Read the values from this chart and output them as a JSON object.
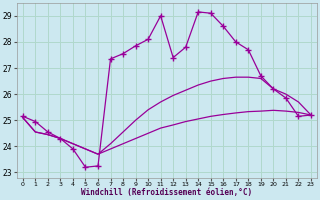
{
  "xlabel": "Windchill (Refroidissement éolien,°C)",
  "xlim": [
    -0.5,
    23.5
  ],
  "ylim": [
    22.8,
    29.5
  ],
  "yticks": [
    23,
    24,
    25,
    26,
    27,
    28,
    29
  ],
  "xticks": [
    0,
    1,
    2,
    3,
    4,
    5,
    6,
    7,
    8,
    9,
    10,
    11,
    12,
    13,
    14,
    15,
    16,
    17,
    18,
    19,
    20,
    21,
    22,
    23
  ],
  "bg_color": "#cce8f0",
  "grid_color": "#b0d8cc",
  "line_color": "#990099",
  "line1_x": [
    0,
    1,
    2,
    3,
    4,
    5,
    6,
    7,
    8,
    9,
    10,
    11,
    12,
    13,
    14,
    15,
    16,
    17,
    18,
    19,
    20,
    21,
    22,
    23
  ],
  "line1_y": [
    25.15,
    24.95,
    24.55,
    24.3,
    23.9,
    23.2,
    23.25,
    27.35,
    27.55,
    27.85,
    28.1,
    29.0,
    27.4,
    27.8,
    29.15,
    29.1,
    28.6,
    28.0,
    27.7,
    26.7,
    26.2,
    25.85,
    25.15,
    25.2
  ],
  "line2_x": [
    0,
    1,
    2,
    3,
    4,
    5,
    6,
    7,
    8,
    9,
    10,
    11,
    12,
    13,
    14,
    15,
    16,
    17,
    18,
    19,
    20,
    21,
    22,
    23
  ],
  "line2_y": [
    25.1,
    24.55,
    24.45,
    24.3,
    24.1,
    23.9,
    23.7,
    24.1,
    24.55,
    25.0,
    25.4,
    25.7,
    25.95,
    26.15,
    26.35,
    26.5,
    26.6,
    26.65,
    26.65,
    26.6,
    26.2,
    26.0,
    25.7,
    25.2
  ],
  "line3_x": [
    0,
    1,
    2,
    3,
    4,
    5,
    6,
    7,
    8,
    9,
    10,
    11,
    12,
    13,
    14,
    15,
    16,
    17,
    18,
    19,
    20,
    21,
    22,
    23
  ],
  "line3_y": [
    25.1,
    24.55,
    24.45,
    24.3,
    24.1,
    23.9,
    23.7,
    23.9,
    24.1,
    24.3,
    24.5,
    24.7,
    24.82,
    24.95,
    25.05,
    25.15,
    25.22,
    25.28,
    25.33,
    25.35,
    25.38,
    25.35,
    25.3,
    25.2
  ]
}
